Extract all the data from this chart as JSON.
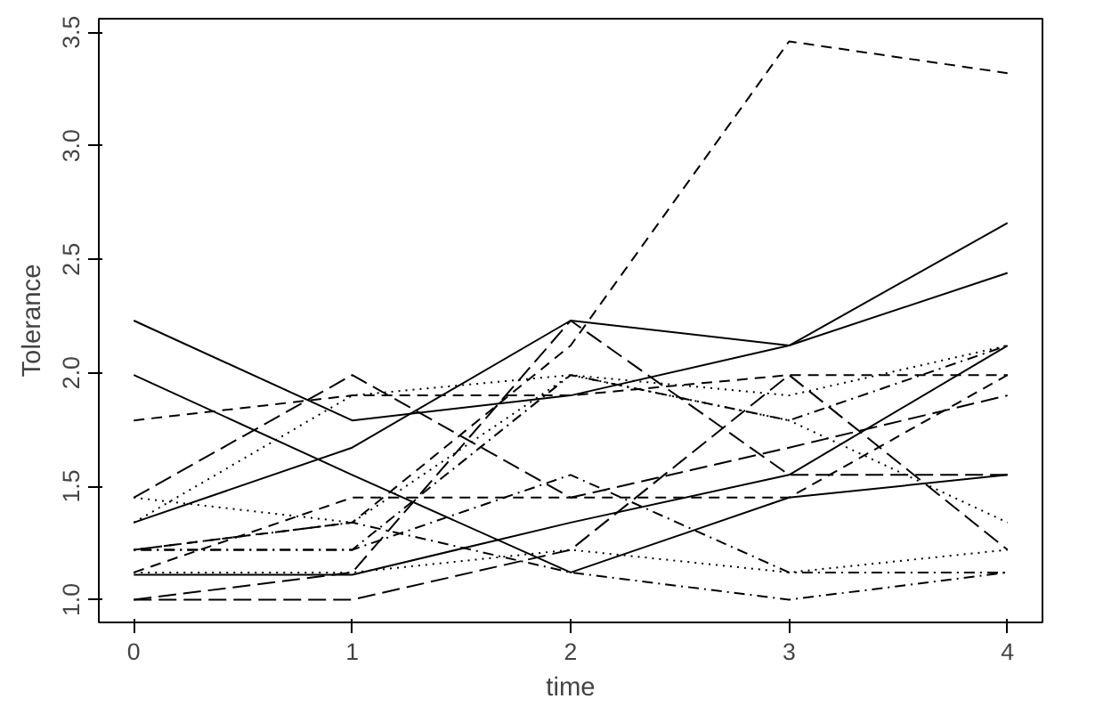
{
  "chart_data": {
    "type": "line",
    "xlabel": "time",
    "ylabel": "Tolerance",
    "x": [
      0,
      1,
      2,
      3,
      4
    ],
    "xlim": [
      -0.16,
      4.16
    ],
    "ylim": [
      0.9,
      3.56
    ],
    "xticks": [
      0,
      1,
      2,
      3,
      4
    ],
    "yticks": [
      {
        "value": 1.0,
        "label": "1.0"
      },
      {
        "value": 1.5,
        "label": "1.5"
      },
      {
        "value": 2.0,
        "label": "2.0"
      },
      {
        "value": 2.5,
        "label": "2.5"
      },
      {
        "value": 3.0,
        "label": "3.0"
      },
      {
        "value": 3.5,
        "label": "3.5"
      }
    ],
    "grid": false,
    "series": [
      {
        "color": "#000000",
        "line_style": "solid",
        "values": [
          2.23,
          1.79,
          1.9,
          2.12,
          2.66
        ]
      },
      {
        "color": "#000000",
        "line_style": "dashed",
        "values": [
          1.12,
          1.45,
          1.45,
          1.45,
          1.99
        ]
      },
      {
        "color": "#000000",
        "line_style": "dotted",
        "values": [
          1.45,
          1.34,
          1.99,
          1.79,
          1.34
        ]
      },
      {
        "color": "#000000",
        "line_style": "dotdash",
        "values": [
          1.22,
          1.22,
          1.55,
          1.12,
          1.12
        ]
      },
      {
        "color": "#000000",
        "line_style": "longdash",
        "values": [
          1.45,
          1.99,
          1.45,
          1.67,
          1.9
        ]
      },
      {
        "color": "#000000",
        "line_style": "solid",
        "values": [
          1.34,
          1.67,
          2.23,
          2.12,
          2.44
        ]
      },
      {
        "color": "#000000",
        "line_style": "dashed",
        "values": [
          1.79,
          1.9,
          1.9,
          1.99,
          1.99
        ]
      },
      {
        "color": "#000000",
        "line_style": "dotted",
        "values": [
          1.12,
          1.12,
          1.22,
          1.12,
          1.22
        ]
      },
      {
        "color": "#000000",
        "line_style": "dotdash",
        "values": [
          1.22,
          1.34,
          1.12,
          1.0,
          1.12
        ]
      },
      {
        "color": "#000000",
        "line_style": "longdash",
        "values": [
          1.0,
          1.0,
          1.22,
          1.99,
          1.22
        ]
      },
      {
        "color": "#000000",
        "line_style": "solid",
        "values": [
          1.99,
          1.55,
          1.12,
          1.45,
          1.55
        ]
      },
      {
        "color": "#000000",
        "line_style": "dashed",
        "values": [
          1.22,
          1.34,
          2.12,
          3.46,
          3.32
        ]
      },
      {
        "color": "#000000",
        "line_style": "dotted",
        "values": [
          1.34,
          1.9,
          1.99,
          1.9,
          2.12
        ]
      },
      {
        "color": "#000000",
        "line_style": "dotdash",
        "values": [
          1.22,
          1.22,
          1.99,
          1.79,
          2.12
        ]
      },
      {
        "color": "#000000",
        "line_style": "longdash",
        "values": [
          1.0,
          1.12,
          2.23,
          1.55,
          1.55
        ]
      },
      {
        "color": "#000000",
        "line_style": "solid",
        "values": [
          1.11,
          1.11,
          1.34,
          1.55,
          2.12
        ]
      }
    ]
  }
}
